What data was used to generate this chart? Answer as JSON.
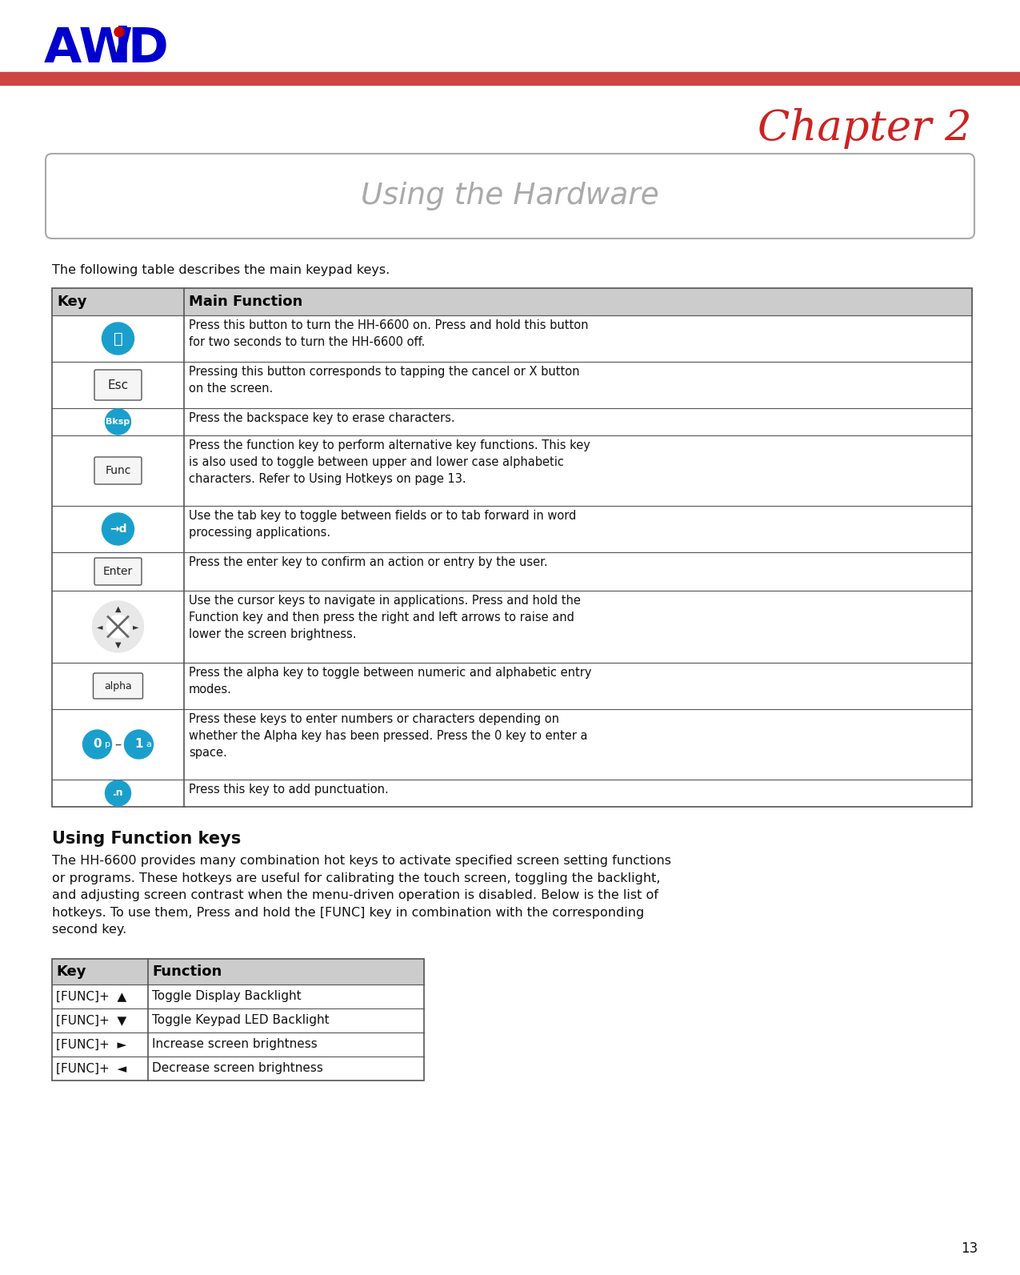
{
  "bg_color": "#ffffff",
  "red_bar_color": "#cc4444",
  "chapter_color": "#cc2222",
  "section_title_color": "#aaaaaa",
  "section_box_border_color": "#bbbbbb",
  "intro_text": "The following table describes the main keypad keys.",
  "table1_header_bg": "#cccccc",
  "table2_header_bg": "#cccccc",
  "table2_rows": [
    [
      "[FUNC]+  ▲",
      "Toggle Display Backlight"
    ],
    [
      "[FUNC]+  ▼",
      "Toggle Keypad LED Backlight"
    ],
    [
      "[FUNC]+  ►",
      "Increase screen brightness"
    ],
    [
      "[FUNC]+  ◄",
      "Decrease screen brightness"
    ]
  ],
  "page_number": "13",
  "cyan_btn_color": "#1a9fcc",
  "logo_blue": "#0000cc",
  "logo_red": "#cc0000",
  "section2_title": "Using Function keys",
  "section2_text": "The HH-6600 provides many combination hot keys to activate specified screen setting functions\nor programs. These hotkeys are useful for calibrating the touch screen, toggling the backlight,\nand adjusting screen contrast when the menu-driven operation is disabled. Below is the list of\nhotkeys. To use them, Press and hold the [FUNC] key in combination with the corresponding\nsecond key.",
  "row_texts": [
    "Press this button to turn the HH-6600 on. Press and hold this button\nfor two seconds to turn the HH-6600 off.",
    "Pressing this button corresponds to tapping the cancel or X button\non the screen.",
    "Press the backspace key to erase characters.",
    "Press the function key to perform alternative key functions. This key\nis also used to toggle between upper and lower case alphabetic\ncharacters. Refer to Using Hotkeys on page 13.",
    "Use the tab key to toggle between fields or to tab forward in word\nprocessing applications.",
    "Press the enter key to confirm an action or entry by the user.",
    "Use the cursor keys to navigate in applications. Press and hold the\nFunction key and then press the right and left arrows to raise and\nlower the screen brightness.",
    "Press the alpha key to toggle between numeric and alphabetic entry\nmodes.",
    "Press these keys to enter numbers or characters depending on\nwhether the Alpha key has been pressed. Press the 0 key to enter a\nspace.",
    "Press this key to add punctuation."
  ]
}
